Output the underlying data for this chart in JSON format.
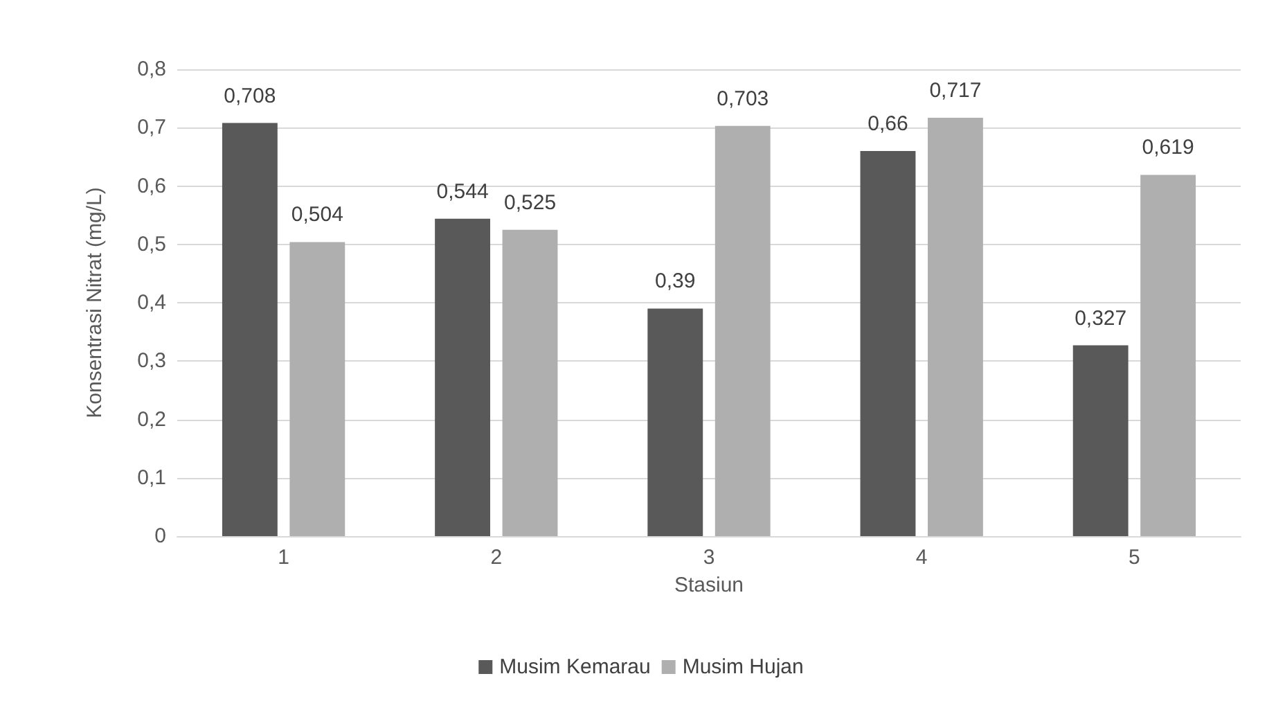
{
  "chart_data": {
    "type": "bar",
    "xlabel": "Stasiun",
    "ylabel": "Konsentrasi Nitrat (mg/L)",
    "categories": [
      "1",
      "2",
      "3",
      "4",
      "5"
    ],
    "series": [
      {
        "name": "Musim Kemarau",
        "color": "#595959",
        "values": [
          0.708,
          0.544,
          0.39,
          0.66,
          0.327
        ],
        "value_labels": [
          "0,708",
          "0,544",
          "0,39",
          "0,66",
          "0,327"
        ]
      },
      {
        "name": "Musim Hujan",
        "color": "#afafaf",
        "values": [
          0.504,
          0.525,
          0.703,
          0.717,
          0.619
        ],
        "value_labels": [
          "0,504",
          "0,525",
          "0,703",
          "0,717",
          "0,619"
        ]
      }
    ],
    "ylim": [
      0,
      0.8
    ],
    "yticks": [
      {
        "value": 0,
        "label": "0"
      },
      {
        "value": 0.1,
        "label": "0,1"
      },
      {
        "value": 0.2,
        "label": "0,2"
      },
      {
        "value": 0.3,
        "label": "0,3"
      },
      {
        "value": 0.4,
        "label": "0,4"
      },
      {
        "value": 0.5,
        "label": "0,5"
      },
      {
        "value": 0.6,
        "label": "0,6"
      },
      {
        "value": 0.7,
        "label": "0,7"
      },
      {
        "value": 0.8,
        "label": "0,8"
      }
    ],
    "grid": "y",
    "legend": "bottom"
  }
}
